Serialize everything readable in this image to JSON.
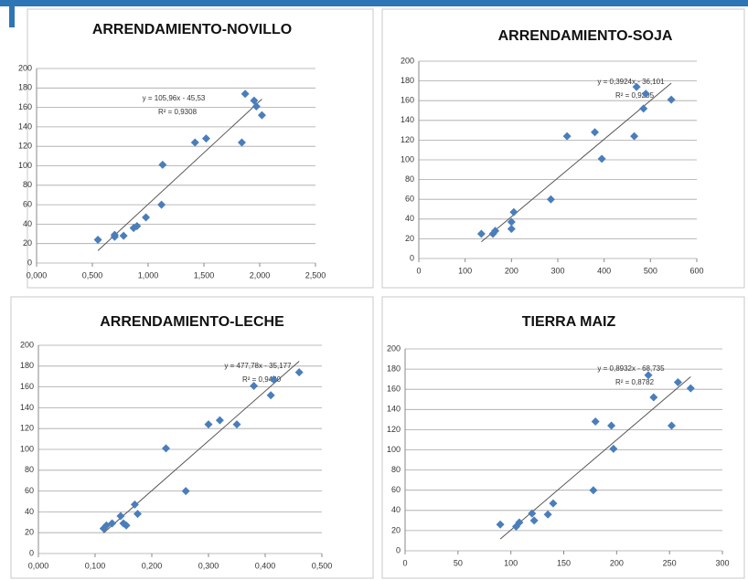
{
  "chart_data": [
    {
      "type": "scatter",
      "title": "ARRENDAMIENTO-NOVILLO",
      "color": "#4a7ebb",
      "x": [
        0.55,
        0.7,
        0.7,
        0.78,
        0.87,
        0.9,
        0.98,
        1.12,
        1.13,
        1.42,
        1.52,
        1.84,
        1.87,
        1.95,
        1.97,
        2.02
      ],
      "values": [
        24,
        27,
        29,
        28,
        36,
        38,
        47,
        60,
        101,
        124,
        128,
        124,
        174,
        167,
        161,
        152
      ],
      "xlim": [
        0,
        2.5
      ],
      "xticks": [
        {
          "value": 0,
          "label": "0,000"
        },
        {
          "value": 0.5,
          "label": "0,500"
        },
        {
          "value": 1,
          "label": "1,000"
        },
        {
          "value": 1.5,
          "label": "1,500"
        },
        {
          "value": 2,
          "label": "2,000"
        },
        {
          "value": 2.5,
          "label": "2,500"
        }
      ],
      "ylim": [
        0,
        200
      ],
      "yticks": [
        0,
        20,
        40,
        60,
        80,
        100,
        120,
        140,
        160,
        180,
        200
      ],
      "grid": true,
      "trendline": {
        "slope": 105.96,
        "intercept": -45.53,
        "label": "y = 105,96x - 45,53",
        "r2_label": "R² = 0,9308"
      }
    },
    {
      "type": "scatter",
      "title": "ARRENDAMIENTO-SOJA",
      "color": "#4a7ebb",
      "x": [
        135,
        160,
        165,
        200,
        200,
        205,
        285,
        320,
        380,
        395,
        465,
        470,
        490,
        485,
        545
      ],
      "values": [
        25,
        25,
        28,
        30,
        37,
        47,
        60,
        124,
        128,
        101,
        124,
        174,
        167,
        152,
        161
      ],
      "xlim": [
        0,
        600
      ],
      "xticks": [
        0,
        100,
        200,
        300,
        400,
        500,
        600
      ],
      "ylim": [
        0,
        200
      ],
      "yticks": [
        0,
        20,
        40,
        60,
        80,
        100,
        120,
        140,
        160,
        180,
        200
      ],
      "grid": true,
      "trendline": {
        "slope": 0.3924,
        "intercept": -36.101,
        "label": "y = 0,3924x - 36,101",
        "r2_label": "R² = 0,9205"
      }
    },
    {
      "type": "scatter",
      "title": "ARRENDAMIENTO-LECHE",
      "color": "#4a7ebb",
      "x": [
        0.115,
        0.12,
        0.13,
        0.145,
        0.15,
        0.155,
        0.17,
        0.175,
        0.225,
        0.26,
        0.3,
        0.32,
        0.35,
        0.38,
        0.41,
        0.415,
        0.46
      ],
      "values": [
        24,
        27,
        29,
        36,
        29,
        27,
        47,
        38,
        101,
        60,
        124,
        128,
        124,
        161,
        152,
        167,
        174
      ],
      "xlim": [
        0,
        0.5
      ],
      "xticks": [
        {
          "value": 0,
          "label": "0,000"
        },
        {
          "value": 0.1,
          "label": "0,100"
        },
        {
          "value": 0.2,
          "label": "0,200"
        },
        {
          "value": 0.3,
          "label": "0,300"
        },
        {
          "value": 0.4,
          "label": "0,400"
        },
        {
          "value": 0.5,
          "label": "0,500"
        }
      ],
      "ylim": [
        0,
        200
      ],
      "yticks": [
        0,
        20,
        40,
        60,
        80,
        100,
        120,
        140,
        160,
        180,
        200
      ],
      "grid": true,
      "trendline": {
        "slope": 477.78,
        "intercept": -35.177,
        "label": "y = 477,78x - 35,177",
        "r2_label": "R² = 0,9430"
      }
    },
    {
      "type": "scatter",
      "title": "TIERRA MAIZ",
      "color": "#4a7ebb",
      "x": [
        90,
        105,
        108,
        120,
        122,
        135,
        140,
        178,
        180,
        195,
        197,
        230,
        235,
        252,
        258,
        270
      ],
      "values": [
        26,
        24,
        28,
        37,
        30,
        36,
        47,
        60,
        128,
        124,
        101,
        174,
        152,
        124,
        167,
        161
      ],
      "xlim": [
        0,
        300
      ],
      "xticks": [
        0,
        50,
        100,
        150,
        200,
        250,
        300
      ],
      "ylim": [
        0,
        200
      ],
      "yticks": [
        0,
        20,
        40,
        60,
        80,
        100,
        120,
        140,
        160,
        180,
        200
      ],
      "grid": true,
      "trendline": {
        "slope": 0.8932,
        "intercept": -68.735,
        "label": "y = 0,8932x - 68,735",
        "r2_label": "R² = 0,8782"
      }
    }
  ]
}
